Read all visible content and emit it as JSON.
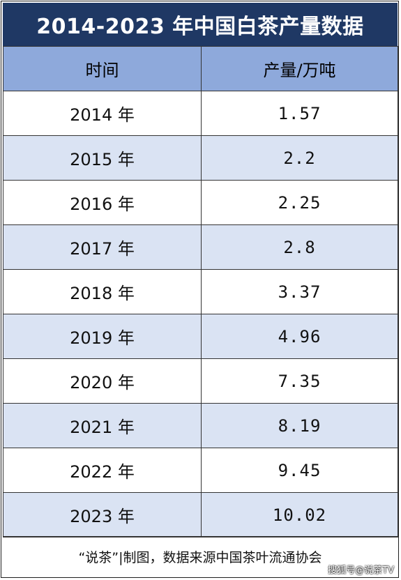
{
  "chart_data": {
    "type": "table",
    "title": "2014-2023 年中国白茶产量数据",
    "columns": [
      "时间",
      "产量/万吨"
    ],
    "rows": [
      {
        "year": "2014 年",
        "value": "1.57"
      },
      {
        "year": "2015 年",
        "value": "2.2"
      },
      {
        "year": "2016 年",
        "value": "2.25"
      },
      {
        "year": "2017 年",
        "value": "2.8"
      },
      {
        "year": "2018 年",
        "value": "3.37"
      },
      {
        "year": "2019 年",
        "value": "4.96"
      },
      {
        "year": "2020 年",
        "value": "7.35"
      },
      {
        "year": "2021 年",
        "value": "8.19"
      },
      {
        "year": "2022 年",
        "value": "9.45"
      },
      {
        "year": "2023 年",
        "value": "10.02"
      }
    ],
    "source_note": "“说茶”|制图，数据来源中国茶叶流通协会"
  },
  "watermark": "搜狐号@说茶TV",
  "colors": {
    "title_bg": "#1f3864",
    "header_bg": "#8ea9db",
    "alt_row_bg": "#dae3f3"
  }
}
